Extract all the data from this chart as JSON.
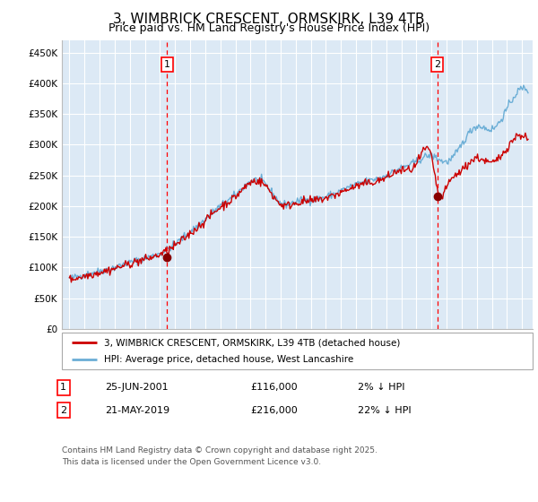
{
  "title": "3, WIMBRICK CRESCENT, ORMSKIRK, L39 4TB",
  "subtitle": "Price paid vs. HM Land Registry's House Price Index (HPI)",
  "title_fontsize": 11,
  "subtitle_fontsize": 9,
  "background_color": "#ffffff",
  "plot_bg_color": "#dce9f5",
  "grid_color": "#ffffff",
  "ylim": [
    0,
    470000
  ],
  "yticks": [
    0,
    50000,
    100000,
    150000,
    200000,
    250000,
    300000,
    350000,
    400000,
    450000
  ],
  "ytick_labels": [
    "£0",
    "£50K",
    "£100K",
    "£150K",
    "£200K",
    "£250K",
    "£300K",
    "£350K",
    "£400K",
    "£450K"
  ],
  "hpi_color": "#6baed6",
  "price_color": "#cc0000",
  "legend_label_price": "3, WIMBRICK CRESCENT, ORMSKIRK, L39 4TB (detached house)",
  "legend_label_hpi": "HPI: Average price, detached house, West Lancashire",
  "sale1_year": 2001.48,
  "sale1_price": 116000,
  "sale2_year": 2019.38,
  "sale2_price": 216000,
  "footnote": "Contains HM Land Registry data © Crown copyright and database right 2025.\nThis data is licensed under the Open Government Licence v3.0.",
  "xmin": 1994.5,
  "xmax": 2025.7
}
